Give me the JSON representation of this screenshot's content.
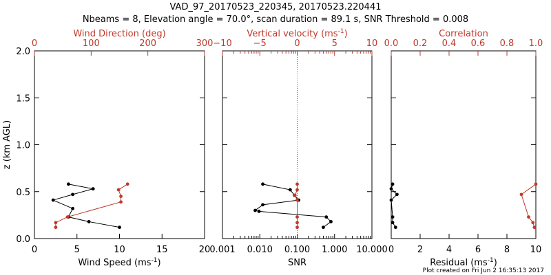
{
  "header": {
    "title": "VAD_97_20170523_220345, 20170523.220441",
    "subtitle": "Nbeams = 8, Elevation angle = 70.0°, scan duration = 89.1 s, SNR Threshold = 0.008"
  },
  "footer": {
    "plot_created": "Plot created on Fri Jun  2 16:35:13 2017"
  },
  "colors": {
    "black": "#000000",
    "red": "#c0392b"
  },
  "chart_data": [
    {
      "type": "line",
      "ylabel": "z (km AGL)",
      "ylim": [
        0.0,
        2.0
      ],
      "yticks": [
        "0.0",
        "0.5",
        "1.0",
        "1.5",
        "2.0"
      ],
      "bottom_axis": {
        "label": "Wind Speed (ms",
        "label_sup": "-1",
        "label_end": ")",
        "range": [
          0,
          20
        ],
        "ticks": [
          "0",
          "5",
          "10",
          "15",
          "20"
        ]
      },
      "top_axis": {
        "label": "Wind Direction (deg)",
        "range": [
          0,
          360
        ],
        "ticks": [
          "0",
          "100",
          "200",
          "300"
        ]
      },
      "series": [
        {
          "axis": "bottom",
          "color": "black",
          "points": [
            [
              10.0,
              0.12
            ],
            [
              6.4,
              0.18
            ],
            [
              4.0,
              0.23
            ],
            [
              4.5,
              0.32
            ],
            [
              2.2,
              0.41
            ],
            [
              4.5,
              0.47
            ],
            [
              6.9,
              0.53
            ],
            [
              4.0,
              0.58
            ]
          ]
        },
        {
          "axis": "top",
          "color": "red",
          "points": [
            [
              45,
              0.12
            ],
            [
              45,
              0.17
            ],
            [
              70,
              0.23
            ],
            [
              183,
              0.39
            ],
            [
              183,
              0.45
            ],
            [
              178,
              0.52
            ],
            [
              197,
              0.58
            ]
          ]
        }
      ]
    },
    {
      "type": "line",
      "bottom_axis": {
        "label": "SNR",
        "range": [
          0.001,
          10.0
        ],
        "scale": "log",
        "ticks": [
          "0.001",
          "0.010",
          "0.100",
          "1.000",
          "10.000"
        ]
      },
      "top_axis": {
        "label": "Vertical velocity (ms",
        "label_sup": "-1",
        "label_end": ")",
        "range": [
          -10,
          10
        ],
        "ticks": [
          "−10",
          "−5",
          "0",
          "5",
          "10"
        ]
      },
      "reference_line": {
        "axis": "top",
        "value": 0,
        "style": "dotted",
        "color": "red"
      },
      "series": [
        {
          "axis": "bottom",
          "color": "black",
          "points": [
            [
              0.5,
              0.12
            ],
            [
              0.8,
              0.18
            ],
            [
              0.6,
              0.23
            ],
            [
              0.0095,
              0.29
            ],
            [
              0.0075,
              0.3
            ],
            [
              0.012,
              0.36
            ],
            [
              0.11,
              0.41
            ],
            [
              0.085,
              0.46
            ],
            [
              0.065,
              0.52
            ],
            [
              0.012,
              0.58
            ]
          ]
        },
        {
          "axis": "top",
          "color": "red",
          "points": [
            [
              0,
              0.12
            ],
            [
              0,
              0.17
            ],
            [
              0,
              0.23
            ],
            [
              0,
              0.41
            ],
            [
              -0.3,
              0.46
            ],
            [
              0,
              0.52
            ],
            [
              0,
              0.58
            ]
          ]
        }
      ]
    },
    {
      "type": "line",
      "bottom_axis": {
        "label": "Residual (ms",
        "label_sup": "-1",
        "label_end": ")",
        "range": [
          0,
          10
        ],
        "ticks": [
          "0",
          "2",
          "4",
          "6",
          "8",
          "10"
        ]
      },
      "top_axis": {
        "label": "Correlation",
        "range": [
          0.0,
          1.0
        ],
        "ticks": [
          "0.0",
          "0.2",
          "0.4",
          "0.6",
          "0.8",
          "1.0"
        ]
      },
      "series": [
        {
          "axis": "bottom",
          "color": "black",
          "points": [
            [
              0.3,
              0.12
            ],
            [
              0.1,
              0.17
            ],
            [
              0.1,
              0.23
            ],
            [
              0.0,
              0.41
            ],
            [
              0.4,
              0.47
            ],
            [
              0.0,
              0.53
            ],
            [
              0.1,
              0.58
            ]
          ]
        },
        {
          "axis": "top",
          "color": "red",
          "points": [
            [
              0.99,
              0.12
            ],
            [
              0.98,
              0.17
            ],
            [
              0.95,
              0.23
            ],
            [
              0.9,
              0.47
            ],
            [
              1.0,
              0.58
            ]
          ]
        }
      ]
    }
  ]
}
